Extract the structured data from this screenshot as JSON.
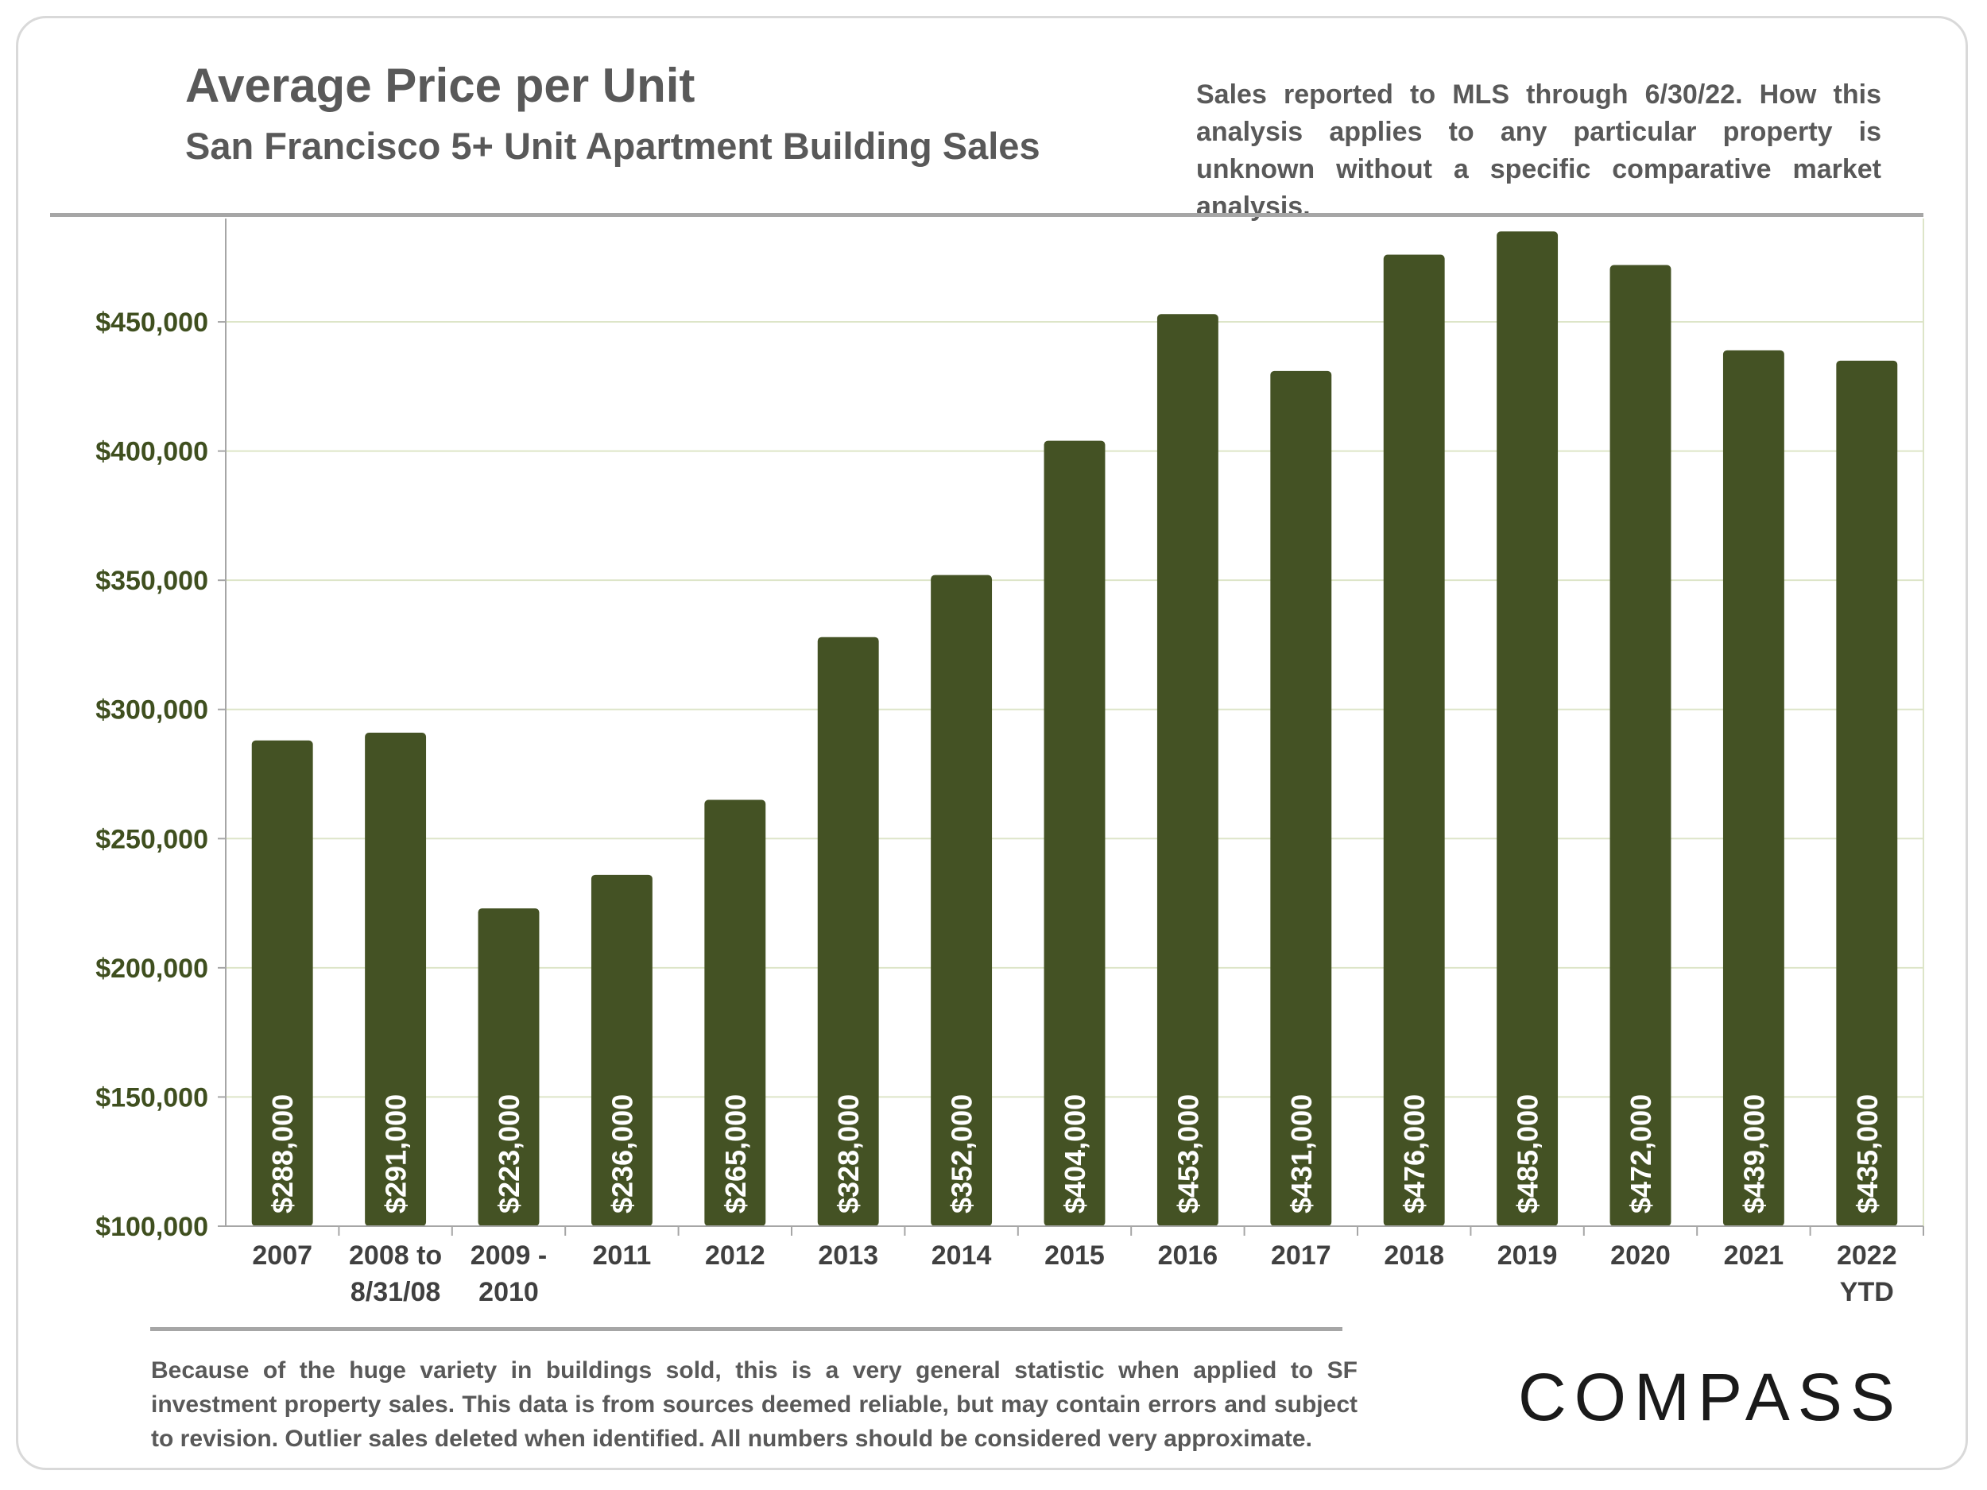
{
  "header": {
    "title": "Average Price per Unit",
    "subtitle": "San Francisco 5+ Unit Apartment Building Sales",
    "note": "Sales reported to MLS through 6/30/22. How this analysis applies to any particular property is unknown without a specific comparative market analysis."
  },
  "footer": {
    "text": "Because of the huge variety in buildings sold, this is a very general statistic when applied to SF investment property sales. This data is from sources deemed reliable, but may contain errors and subject to revision. Outlier sales deleted when identified. All numbers should be considered very approximate."
  },
  "brand": {
    "logo_text": "COMPASS"
  },
  "colors": {
    "bar": "#445224",
    "axis_text": "#3f4f1f",
    "gridline": "#dde5c8",
    "rule": "#a6a6a6"
  },
  "chart_data": {
    "type": "bar",
    "title": "Average Price per Unit",
    "subtitle": "San Francisco 5+ Unit Apartment Building Sales",
    "categories": [
      [
        "2007"
      ],
      [
        "2008 to",
        "8/31/08"
      ],
      [
        "2009 -",
        "2010"
      ],
      [
        "2011"
      ],
      [
        "2012"
      ],
      [
        "2013"
      ],
      [
        "2014"
      ],
      [
        "2015"
      ],
      [
        "2016"
      ],
      [
        "2017"
      ],
      [
        "2018"
      ],
      [
        "2019"
      ],
      [
        "2020"
      ],
      [
        "2021"
      ],
      [
        "2022",
        "YTD"
      ]
    ],
    "values": [
      288000,
      291000,
      223000,
      236000,
      265000,
      328000,
      352000,
      404000,
      453000,
      431000,
      476000,
      485000,
      472000,
      439000,
      435000
    ],
    "data_labels": [
      "$288,000",
      "$291,000",
      "$223,000",
      "$236,000",
      "$265,000",
      "$328,000",
      "$352,000",
      "$404,000",
      "$453,000",
      "$431,000",
      "$476,000",
      "$485,000",
      "$472,000",
      "$439,000",
      "$435,000"
    ],
    "ylim": [
      100000,
      490000
    ],
    "yticks": [
      100000,
      150000,
      200000,
      250000,
      300000,
      350000,
      400000,
      450000
    ],
    "ytick_labels": [
      "$100,000",
      "$150,000",
      "$200,000",
      "$250,000",
      "$300,000",
      "$350,000",
      "$400,000",
      "$450,000"
    ],
    "xlabel": "",
    "ylabel": "",
    "grid": true,
    "legend": "none"
  }
}
